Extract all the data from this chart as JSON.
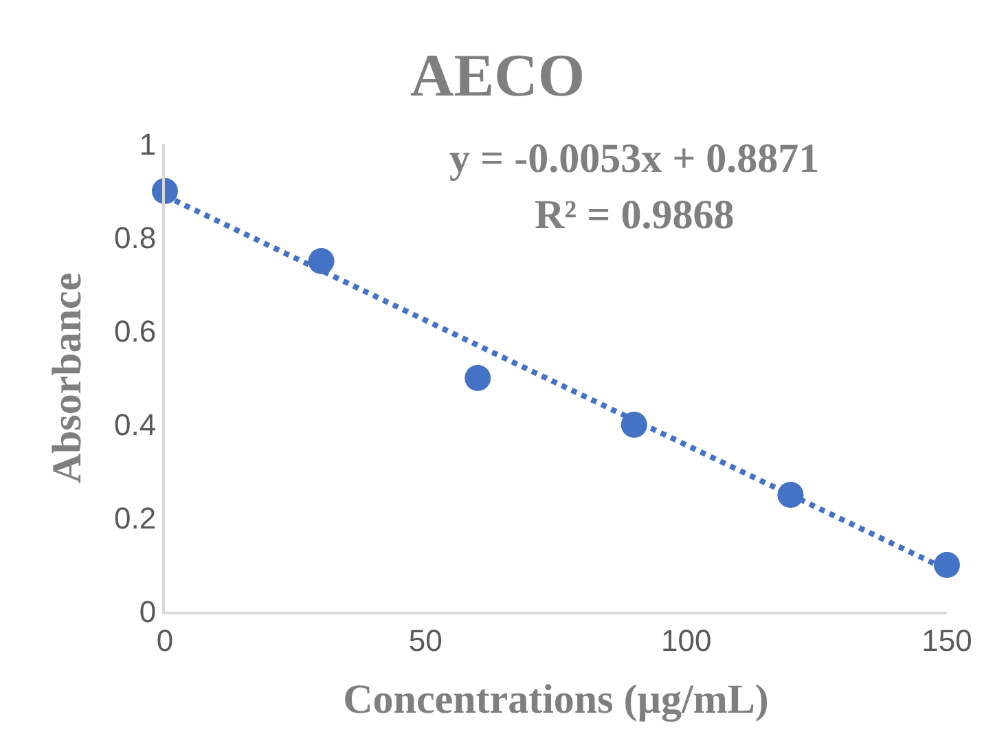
{
  "chart_data": {
    "type": "scatter",
    "title": "AECO",
    "xlabel": "Concentrations (µg/mL)",
    "ylabel": "Absorbance",
    "x": [
      0,
      30,
      60,
      90,
      120,
      150
    ],
    "series": [
      {
        "color": "#4472c4",
        "values": [
          0.9,
          0.75,
          0.5,
          0.4,
          0.25,
          0.1
        ],
        "marker": "circle"
      },
      {
        "type": "line",
        "color": "#4472c4",
        "x": [
          0,
          150
        ],
        "values": [
          0.89,
          0.09
        ],
        "line_style": "dotted",
        "marker": "none"
      }
    ],
    "annotations": [
      "y = -0.0053x + 0.8871",
      "R² = 0.9868"
    ],
    "xlim": [
      0,
      150
    ],
    "xticks": [
      0,
      50,
      100,
      150
    ],
    "ylim": [
      0,
      1
    ],
    "yticks": [
      0,
      0.2,
      0.4,
      0.6,
      0.8,
      1
    ]
  }
}
